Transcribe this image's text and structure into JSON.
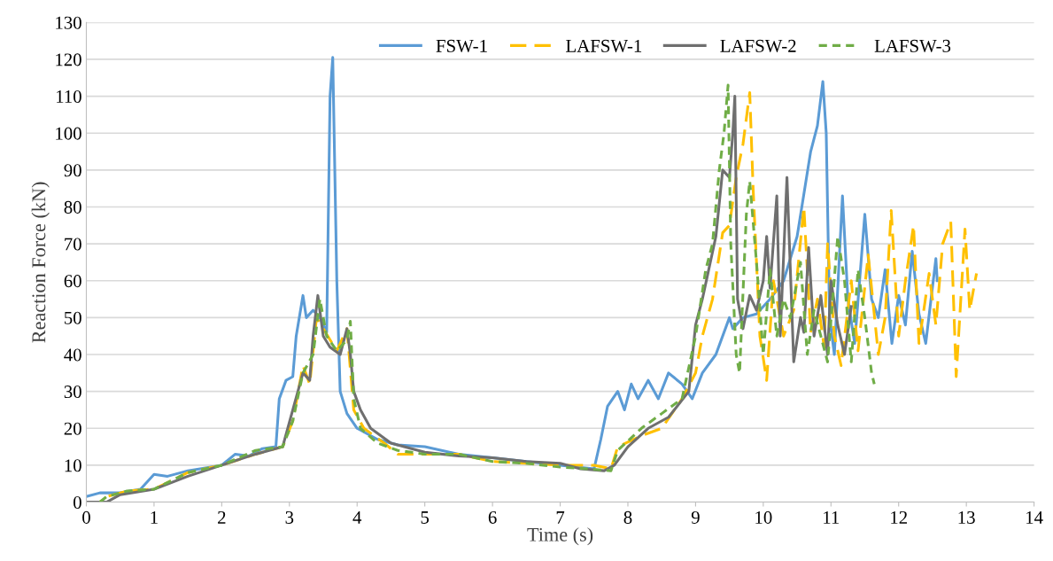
{
  "chart_data": {
    "type": "line",
    "xlabel": "Time (s)",
    "ylabel": "Reaction Force (kN)",
    "xlim": [
      0,
      14
    ],
    "xticks": [
      0,
      1,
      2,
      3,
      4,
      5,
      6,
      7,
      8,
      9,
      10,
      11,
      12,
      13,
      14
    ],
    "ylim": [
      0,
      130
    ],
    "yticks": [
      0,
      10,
      20,
      30,
      40,
      50,
      60,
      70,
      80,
      90,
      100,
      110,
      120,
      130
    ],
    "grid": "y",
    "legend": "top right",
    "marker": "none",
    "series": [
      {
        "name": "FSW-1",
        "color": "#5b9bd5",
        "line_style": "solid",
        "x": [
          0,
          0.2,
          0.5,
          0.8,
          1.0,
          1.2,
          1.5,
          2.0,
          2.2,
          2.4,
          2.6,
          2.8,
          2.85,
          2.95,
          3.05,
          3.1,
          3.2,
          3.25,
          3.35,
          3.45,
          3.55,
          3.6,
          3.64,
          3.7,
          3.75,
          3.85,
          4.0,
          4.3,
          4.6,
          5.0,
          5.5,
          6.0,
          6.5,
          7.0,
          7.5,
          7.6,
          7.7,
          7.85,
          7.95,
          8.05,
          8.15,
          8.3,
          8.45,
          8.6,
          8.8,
          8.95,
          9.1,
          9.3,
          9.5,
          9.55,
          9.7,
          9.9,
          10.1,
          10.3,
          10.5,
          10.7,
          10.8,
          10.88,
          10.93,
          10.98,
          11.05,
          11.17,
          11.25,
          11.35,
          11.5,
          11.6,
          11.7,
          11.8,
          11.9,
          12.0,
          12.1,
          12.2,
          12.3,
          12.4,
          12.55,
          12.57
        ],
        "values": [
          1.5,
          2.5,
          2.5,
          3.5,
          7.5,
          7,
          8.5,
          10,
          13,
          12.5,
          14.5,
          15,
          28,
          33,
          34,
          45,
          56,
          50,
          52,
          50,
          46,
          110,
          120.5,
          60,
          30,
          24,
          20,
          17,
          15.5,
          15,
          13,
          12,
          11,
          10,
          9,
          17,
          26,
          30,
          25,
          32,
          28,
          33,
          28,
          35,
          32,
          28,
          35,
          40,
          50,
          47,
          50,
          51,
          55,
          60,
          72,
          95,
          102,
          114,
          100,
          50,
          40,
          83,
          55,
          43,
          78,
          55,
          50,
          63,
          43,
          56,
          48,
          68,
          51,
          43,
          66,
          60
        ]
      },
      {
        "name": "LAFSW-1",
        "color": "#ffc000",
        "line_style": "dashed",
        "x": [
          0,
          0.2,
          0.3,
          0.6,
          1.0,
          1.5,
          2.0,
          2.5,
          2.9,
          3.05,
          3.2,
          3.3,
          3.4,
          3.5,
          3.7,
          3.85,
          3.95,
          4.1,
          4.4,
          4.6,
          5.0,
          5.5,
          6.0,
          6.5,
          7.0,
          7.5,
          7.75,
          7.85,
          8.2,
          8.5,
          8.8,
          9.0,
          9.1,
          9.25,
          9.4,
          9.5,
          9.6,
          9.7,
          9.8,
          9.85,
          9.95,
          10.05,
          10.15,
          10.3,
          10.45,
          10.6,
          10.7,
          10.8,
          10.9,
          10.95,
          11.05,
          11.15,
          11.3,
          11.4,
          11.55,
          11.7,
          11.8,
          11.89,
          12.0,
          12.1,
          12.22,
          12.3,
          12.45,
          12.55,
          12.65,
          12.77,
          12.85,
          12.98,
          13.05,
          13.15
        ],
        "values": [
          0,
          0,
          1.5,
          3,
          3.5,
          8,
          10,
          13,
          15,
          22,
          37,
          32,
          50,
          47,
          41,
          47,
          25,
          20,
          16,
          13,
          13,
          13,
          11,
          10.5,
          10,
          10,
          9,
          15,
          18,
          20,
          28,
          35,
          45,
          55,
          73,
          75,
          88,
          97,
          111,
          85,
          45,
          33,
          60,
          45,
          52,
          80,
          46,
          55,
          42,
          70,
          45,
          37,
          60,
          41,
          67,
          40,
          50,
          79,
          45,
          60,
          75,
          43,
          62,
          48,
          70,
          76,
          34,
          74,
          52,
          62
        ]
      },
      {
        "name": "LAFSW-2",
        "color": "#6f6f6f",
        "line_style": "solid",
        "x": [
          0,
          0.3,
          0.5,
          1.0,
          1.5,
          2.0,
          2.5,
          2.9,
          3.05,
          3.2,
          3.3,
          3.35,
          3.42,
          3.5,
          3.6,
          3.75,
          3.85,
          3.9,
          3.95,
          4.05,
          4.2,
          4.5,
          5.0,
          5.5,
          6.0,
          6.5,
          7.0,
          7.3,
          7.65,
          7.8,
          8.0,
          8.3,
          8.6,
          8.9,
          9.0,
          9.1,
          9.3,
          9.4,
          9.5,
          9.55,
          9.58,
          9.62,
          9.7,
          9.8,
          9.9,
          10.0,
          10.05,
          10.1,
          10.2,
          10.25,
          10.35,
          10.45,
          10.55,
          10.6,
          10.67,
          10.75,
          10.85,
          10.95,
          11.0,
          11.1,
          11.2,
          11.3
        ],
        "values": [
          0,
          0,
          2,
          3.5,
          7,
          10,
          13,
          15,
          25,
          35,
          33,
          45,
          56,
          45,
          42,
          40,
          47,
          40,
          30,
          25,
          20,
          16,
          13.5,
          12.5,
          12,
          11,
          10.5,
          9,
          8.5,
          10,
          15,
          20,
          23,
          30,
          48,
          55,
          72,
          90,
          88,
          100,
          110,
          55,
          47,
          56,
          52,
          60,
          72,
          58,
          83,
          45,
          88,
          38,
          50,
          46,
          69,
          45,
          56,
          40,
          60,
          48,
          40,
          53
        ]
      },
      {
        "name": "LAFSW-3",
        "color": "#70ad47",
        "line_style": "dotted",
        "x": [
          0.2,
          0.3,
          0.6,
          1.0,
          1.5,
          2.0,
          2.5,
          2.9,
          3.05,
          3.2,
          3.35,
          3.45,
          3.55,
          3.7,
          3.85,
          3.9,
          3.95,
          4.05,
          4.3,
          4.6,
          5.0,
          5.5,
          6.0,
          6.5,
          7.0,
          7.4,
          7.75,
          7.85,
          8.2,
          8.5,
          8.8,
          9.0,
          9.15,
          9.25,
          9.35,
          9.42,
          9.48,
          9.52,
          9.6,
          9.65,
          9.75,
          9.8,
          9.9,
          10.0,
          10.1,
          10.2,
          10.3,
          10.4,
          10.55,
          10.65,
          10.75,
          10.85,
          10.95,
          11.1,
          11.2,
          11.3,
          11.4,
          11.5,
          11.6,
          11.64
        ],
        "values": [
          0,
          1.5,
          3,
          3.5,
          8,
          10,
          14,
          15,
          22,
          35,
          40,
          55,
          45,
          41,
          44,
          49,
          28,
          20,
          16,
          14,
          13,
          13,
          11,
          10.5,
          9.5,
          9,
          8.5,
          14,
          20,
          24,
          28,
          45,
          63,
          70,
          90,
          100,
          113,
          70,
          40,
          35,
          78,
          87,
          65,
          40,
          63,
          45,
          55,
          50,
          65,
          40,
          52,
          45,
          38,
          72,
          60,
          38,
          63,
          50,
          35,
          32
        ]
      }
    ]
  }
}
